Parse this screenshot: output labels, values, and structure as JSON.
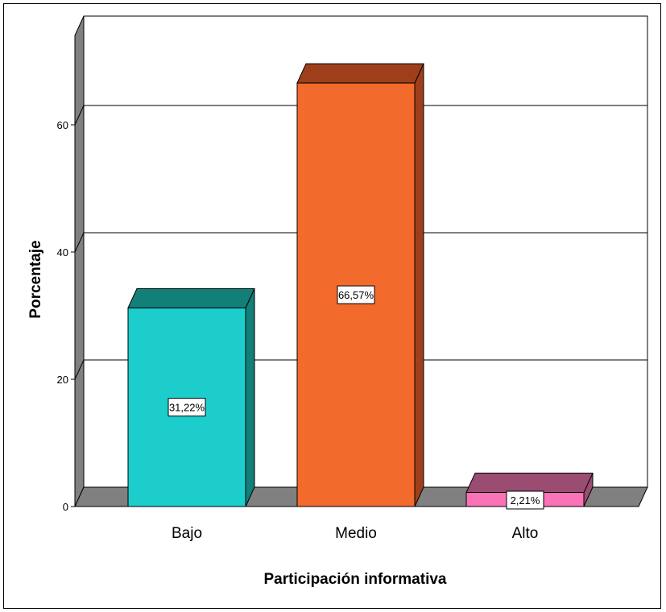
{
  "chart_data": {
    "type": "bar",
    "title": "",
    "xlabel": "Participación informativa",
    "ylabel": "Porcentaje",
    "categories": [
      "Bajo",
      "Medio",
      "Alto"
    ],
    "values": [
      31.22,
      66.57,
      2.21
    ],
    "data_labels": [
      "31,22%",
      "66,57%",
      "2,21%"
    ],
    "ylim": [
      0,
      75
    ],
    "yticks": [
      0,
      20,
      40,
      60
    ],
    "ytick_labels": [
      "0",
      "20",
      "40",
      "60"
    ],
    "grid": true,
    "legend": "none",
    "style": "3d",
    "colors": {
      "front": [
        "#1dcdcb",
        "#f26a2c",
        "#fa72b8"
      ],
      "top": [
        "#137f79",
        "#9e3f1c",
        "#9a4d71"
      ],
      "side": [
        "#137f79",
        "#9e3f1c",
        "#9a4d71"
      ],
      "wall": "#808080",
      "gridline": "#000000"
    }
  }
}
